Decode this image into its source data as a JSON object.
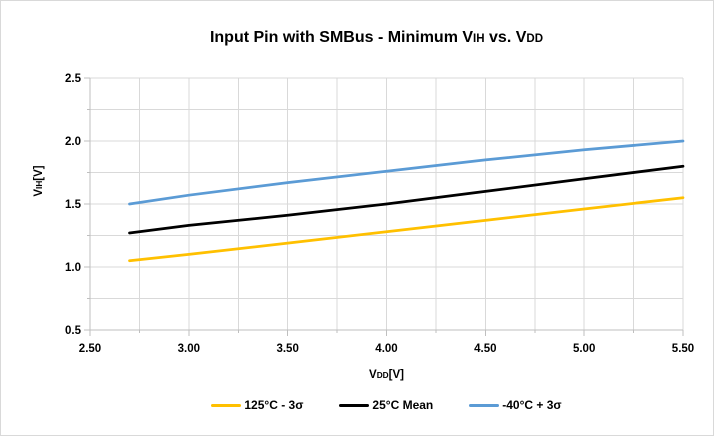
{
  "chart_data": {
    "type": "line",
    "title": "Input Pin with SMBus - Minimum VIH vs. VDD",
    "title_segments": [
      {
        "text": "Input Pin with SMBus - Minimum V"
      },
      {
        "text": "IH",
        "small": true
      },
      {
        "text": " vs. V"
      },
      {
        "text": "DD",
        "small": true
      }
    ],
    "x_axis": {
      "label": "VDD[V]",
      "label_segments": [
        {
          "text": "V"
        },
        {
          "text": "DD",
          "small": true
        },
        {
          "text": "[V]"
        }
      ],
      "min": 2.5,
      "max": 5.5,
      "major_tick": 0.5,
      "minor_tick": 0.25,
      "tick_labels": [
        "2.50",
        "3.00",
        "3.50",
        "4.00",
        "4.50",
        "5.00",
        "5.50"
      ]
    },
    "y_axis": {
      "label": "VIH[V]",
      "label_segments": [
        {
          "text": "V"
        },
        {
          "text": "IH",
          "small": true
        },
        {
          "text": "[V]"
        }
      ],
      "min": 0.5,
      "max": 2.5,
      "major_tick": 0.5,
      "minor_tick": 0.25,
      "tick_labels": [
        "0.5",
        "1.0",
        "1.5",
        "2.0",
        "2.5"
      ]
    },
    "grid": true,
    "legend_position": "bottom",
    "x": [
      2.7,
      3.0,
      3.5,
      4.0,
      4.5,
      5.0,
      5.5
    ],
    "series": [
      {
        "name": "125°C - 3σ",
        "color": "#FFC000",
        "values": [
          1.05,
          1.1,
          1.19,
          1.28,
          1.37,
          1.46,
          1.55
        ]
      },
      {
        "name": "25°C Mean",
        "color": "#000000",
        "values": [
          1.27,
          1.33,
          1.41,
          1.5,
          1.6,
          1.7,
          1.8
        ]
      },
      {
        "name": "-40°C + 3σ",
        "color": "#5B9BD5",
        "values": [
          1.5,
          1.57,
          1.67,
          1.76,
          1.85,
          1.93,
          2.0
        ]
      }
    ]
  },
  "colors": {
    "background": "#FFFFFF",
    "border": "#D9D9D9",
    "gridline": "#D9D9D9",
    "axis": "#BFBFBF",
    "text": "#000000"
  }
}
